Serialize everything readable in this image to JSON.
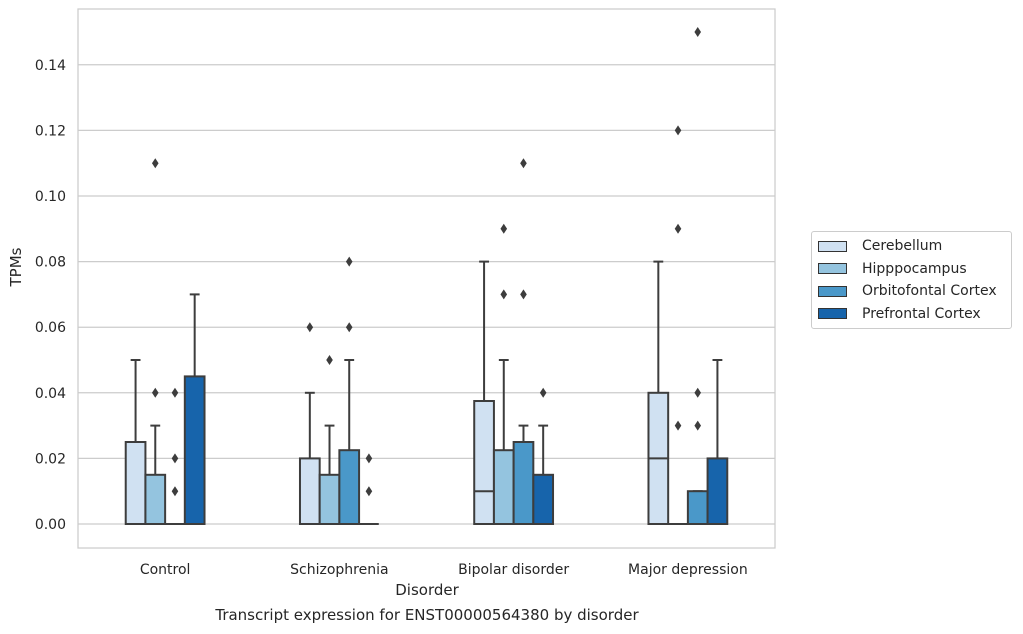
{
  "chart_data": {
    "type": "boxplot",
    "xlabel": "Disorder",
    "ylabel": "TPMs",
    "ylim": [
      -0.0075,
      0.1575
    ],
    "yticks": [
      0.0,
      0.02,
      0.04,
      0.06,
      0.08,
      0.1,
      0.12,
      0.14
    ],
    "ytick_labels": [
      "0.00",
      "0.02",
      "0.04",
      "0.06",
      "0.08",
      "0.10",
      "0.12",
      "0.14"
    ],
    "grid": "horizontal",
    "legend_placement": "right",
    "categories": [
      "Control",
      "Schizophrenia",
      "Bipolar disorder",
      "Major depression"
    ],
    "series": [
      {
        "name": "Cerebellum",
        "color": "#d0e1f2",
        "boxes": [
          {
            "q1": 0.0,
            "median": 0.0,
            "q3": 0.025,
            "whislo": 0.0,
            "whishi": 0.05,
            "fliers": []
          },
          {
            "q1": 0.0,
            "median": 0.0,
            "q3": 0.02,
            "whislo": 0.0,
            "whishi": 0.04,
            "fliers": [
              0.06
            ]
          },
          {
            "q1": 0.0,
            "median": 0.01,
            "q3": 0.0375,
            "whislo": 0.0,
            "whishi": 0.08,
            "fliers": []
          },
          {
            "q1": 0.0,
            "median": 0.02,
            "q3": 0.04,
            "whislo": 0.0,
            "whishi": 0.08,
            "fliers": []
          }
        ]
      },
      {
        "name": "Hipppocampus",
        "color": "#94c4df",
        "boxes": [
          {
            "q1": 0.0,
            "median": 0.0,
            "q3": 0.015,
            "whislo": 0.0,
            "whishi": 0.03,
            "fliers": [
              0.04,
              0.11
            ]
          },
          {
            "q1": 0.0,
            "median": 0.0,
            "q3": 0.015,
            "whislo": 0.0,
            "whishi": 0.03,
            "fliers": [
              0.05
            ]
          },
          {
            "q1": 0.0,
            "median": 0.0,
            "q3": 0.0225,
            "whislo": 0.0,
            "whishi": 0.05,
            "fliers": [
              0.07,
              0.09
            ]
          },
          {
            "q1": 0.0,
            "median": 0.0,
            "q3": 0.0,
            "whislo": 0.0,
            "whishi": 0.0,
            "fliers": [
              0.03,
              0.09,
              0.12
            ]
          }
        ]
      },
      {
        "name": "Orbitofontal Cortex",
        "color": "#4a98c9",
        "boxes": [
          {
            "q1": 0.0,
            "median": 0.0,
            "q3": 0.0,
            "whislo": 0.0,
            "whishi": 0.0,
            "fliers": [
              0.01,
              0.02,
              0.04
            ]
          },
          {
            "q1": 0.0,
            "median": 0.0,
            "q3": 0.0225,
            "whislo": 0.0,
            "whishi": 0.05,
            "fliers": [
              0.06,
              0.08
            ]
          },
          {
            "q1": 0.0,
            "median": 0.0,
            "q3": 0.025,
            "whislo": 0.0,
            "whishi": 0.03,
            "fliers": [
              0.07,
              0.11
            ]
          },
          {
            "q1": 0.0,
            "median": 0.0,
            "q3": 0.01,
            "whislo": 0.0,
            "whishi": 0.01,
            "fliers": [
              0.03,
              0.04,
              0.15
            ]
          }
        ]
      },
      {
        "name": "Prefrontal Cortex",
        "color": "#1764ab",
        "boxes": [
          {
            "q1": 0.0,
            "median": 0.0,
            "q3": 0.045,
            "whislo": 0.0,
            "whishi": 0.07,
            "fliers": []
          },
          {
            "q1": 0.0,
            "median": 0.0,
            "q3": 0.0,
            "whislo": 0.0,
            "whishi": 0.0,
            "fliers": [
              0.01,
              0.02
            ]
          },
          {
            "q1": 0.0,
            "median": 0.0,
            "q3": 0.015,
            "whislo": 0.0,
            "whishi": 0.03,
            "fliers": [
              0.04
            ]
          },
          {
            "q1": 0.0,
            "median": 0.0,
            "q3": 0.02,
            "whislo": 0.0,
            "whishi": 0.05,
            "fliers": []
          }
        ]
      }
    ],
    "caption": "Transcript expression for ENST00000564380 by disorder"
  }
}
